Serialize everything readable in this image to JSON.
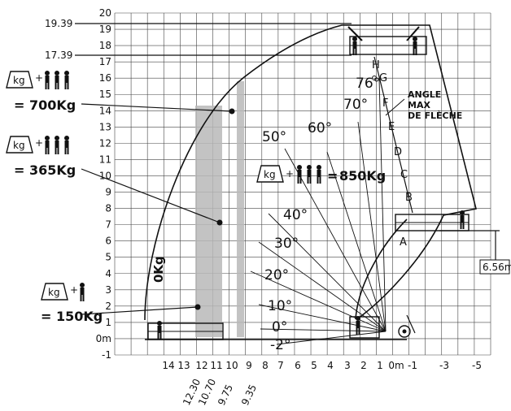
{
  "grid": {
    "y_labels": [
      "20",
      "19",
      "18",
      "17",
      "16",
      "15",
      "14",
      "13",
      "12",
      "11",
      "10",
      "9",
      "8",
      "7",
      "6",
      "5",
      "4",
      "3",
      "2",
      "1",
      "0m",
      "-1"
    ],
    "x_labels": [
      "14",
      "13",
      "12",
      "11",
      "10",
      "9",
      "8",
      "7",
      "6",
      "5",
      "4",
      "3",
      "2",
      "1",
      "0m",
      "-1",
      "-3",
      "-5"
    ]
  },
  "heights": {
    "top": "19.39",
    "second": "17.39"
  },
  "bottom_marks": [
    "12.30",
    "10.70",
    "9.75",
    "9.35"
  ],
  "right_mark": "6.56m",
  "angles": [
    "76°",
    "70°",
    "60°",
    "50°",
    "40°",
    "30°",
    "20°",
    "10°",
    "0°",
    "-2°"
  ],
  "letters": [
    "H",
    "G",
    "F",
    "E",
    "D",
    "C",
    "B",
    "A"
  ],
  "angle_max_label": [
    "ANGLE",
    "MAX",
    "DE FLÈCHE"
  ],
  "loads": {
    "kg_icon": "kg",
    "plus": "+",
    "l700": "= 700Kg",
    "l365": "= 365Kg",
    "l150": "= 150Kg",
    "l850": "850Kg",
    "l850_eq": "=",
    "zero": "0Kg"
  }
}
